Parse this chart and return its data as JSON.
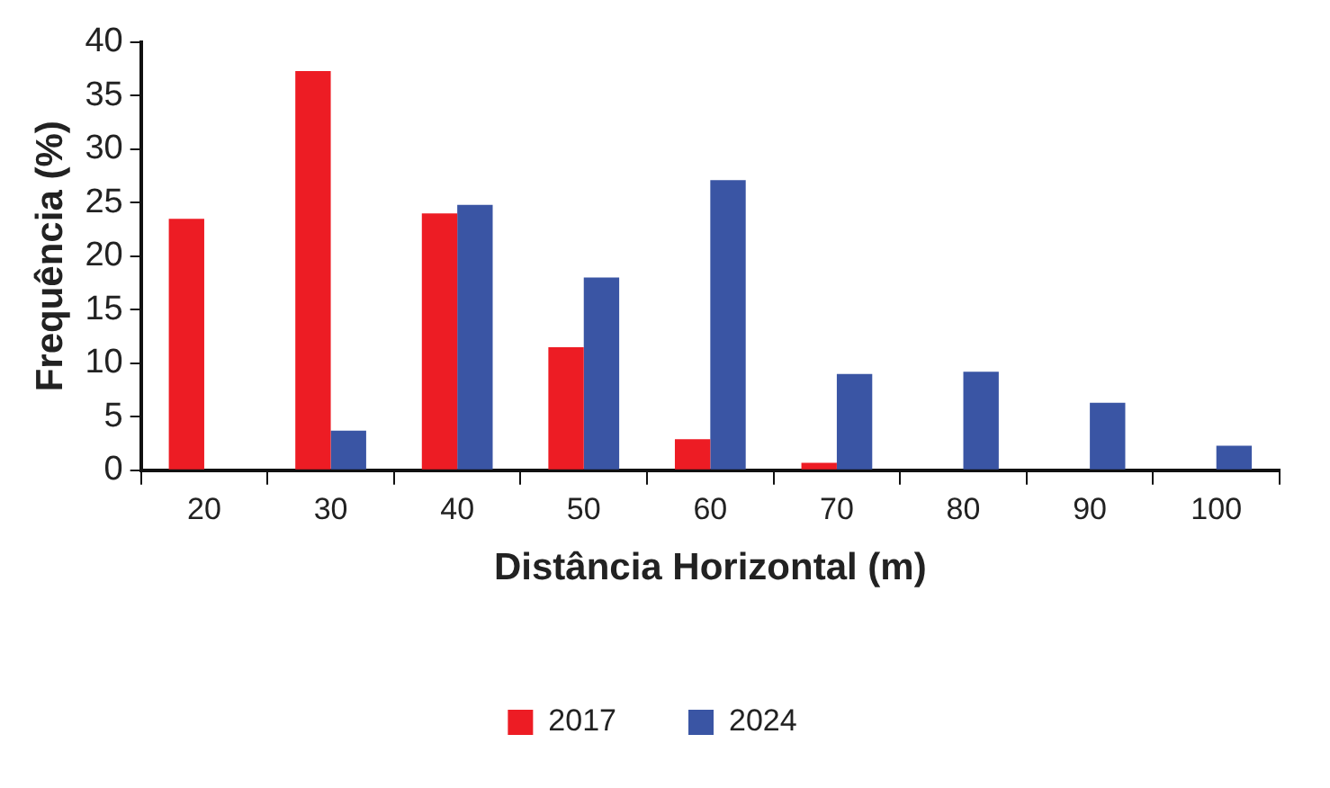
{
  "chart_data": {
    "type": "bar",
    "xlabel": "Distância Horizontal (m)",
    "ylabel": "Frequência (%)",
    "categories": [
      "20",
      "30",
      "40",
      "50",
      "60",
      "70",
      "80",
      "90",
      "100"
    ],
    "series": [
      {
        "name": "2017",
        "color": "#ed1c24",
        "values": [
          23.5,
          37.3,
          24.0,
          11.5,
          2.9,
          0.7,
          0,
          0,
          0
        ]
      },
      {
        "name": "2024",
        "color": "#3a55a4",
        "values": [
          0,
          3.7,
          24.8,
          18.0,
          27.1,
          9.0,
          9.2,
          6.3,
          2.3
        ]
      }
    ],
    "ylim": [
      0,
      40
    ],
    "yticks": [
      0,
      5,
      10,
      15,
      20,
      25,
      30,
      35,
      40
    ],
    "grid": false,
    "legend": "bottom"
  }
}
